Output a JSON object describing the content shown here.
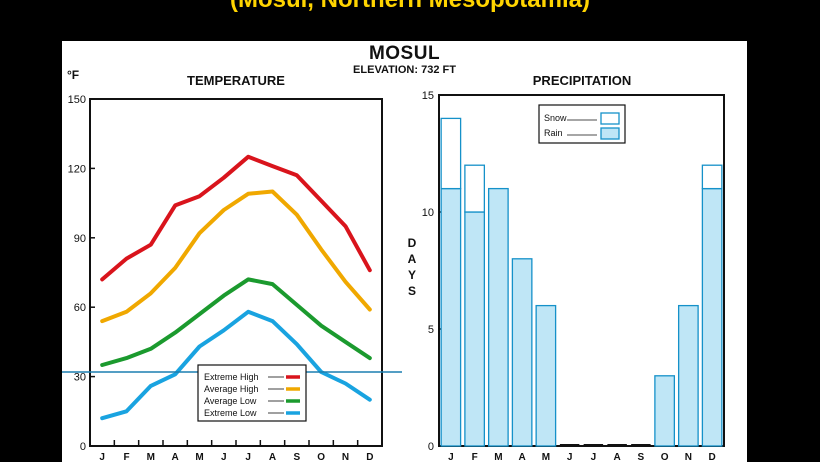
{
  "header_text": "(Mosul, Northern Mesopotamia)",
  "station": {
    "name": "MOSUL",
    "elevation": "ELEVATION: 732 FT"
  },
  "colors": {
    "extreme_high": "#d9141c",
    "average_high": "#f0a800",
    "average_low": "#1b9a2e",
    "extreme_low": "#19a3e0",
    "bar_fill": "#bfe6f6",
    "bar_stroke": "#1591c9",
    "reference_line": "#1c7fb0"
  },
  "chart_data": [
    {
      "type": "line",
      "title": "TEMPERATURE",
      "ylabel": "°F",
      "xlabel": "",
      "ylim": [
        0,
        150
      ],
      "yticks": [
        0,
        30,
        60,
        90,
        120,
        150
      ],
      "categories": [
        "J",
        "F",
        "M",
        "A",
        "M",
        "J",
        "J",
        "A",
        "S",
        "O",
        "N",
        "D"
      ],
      "reference_line": 32,
      "grid": false,
      "legend_position": "bottom-center",
      "series": [
        {
          "name": "Extreme High",
          "color_key": "extreme_high",
          "values": [
            72,
            81,
            87,
            104,
            108,
            116,
            125,
            121,
            117,
            106,
            95,
            76
          ]
        },
        {
          "name": "Average High",
          "color_key": "average_high",
          "values": [
            54,
            58,
            66,
            77,
            92,
            102,
            109,
            110,
            100,
            85,
            71,
            59
          ]
        },
        {
          "name": "Average Low",
          "color_key": "average_low",
          "values": [
            35,
            38,
            42,
            49,
            57,
            65,
            72,
            70,
            61,
            52,
            45,
            38
          ]
        },
        {
          "name": "Extreme Low",
          "color_key": "extreme_low",
          "values": [
            12,
            15,
            26,
            31,
            43,
            50,
            58,
            54,
            44,
            32,
            27,
            20
          ]
        }
      ]
    },
    {
      "type": "bar",
      "title": "PRECIPITATION",
      "ylabel": "DAYS",
      "xlabel": "",
      "ylim": [
        0,
        15
      ],
      "yticks": [
        0,
        5,
        10,
        15
      ],
      "categories": [
        "J",
        "F",
        "M",
        "A",
        "M",
        "J",
        "J",
        "A",
        "S",
        "O",
        "N",
        "D"
      ],
      "stacked": true,
      "legend_position": "top-center",
      "series": [
        {
          "name": "Rain",
          "values": [
            11,
            10,
            11,
            8,
            6,
            0,
            0,
            0,
            0,
            3,
            6,
            11
          ]
        },
        {
          "name": "Snow",
          "values": [
            3,
            2,
            0,
            0,
            0,
            0,
            0,
            0,
            0,
            0,
            0,
            1
          ]
        }
      ]
    }
  ]
}
